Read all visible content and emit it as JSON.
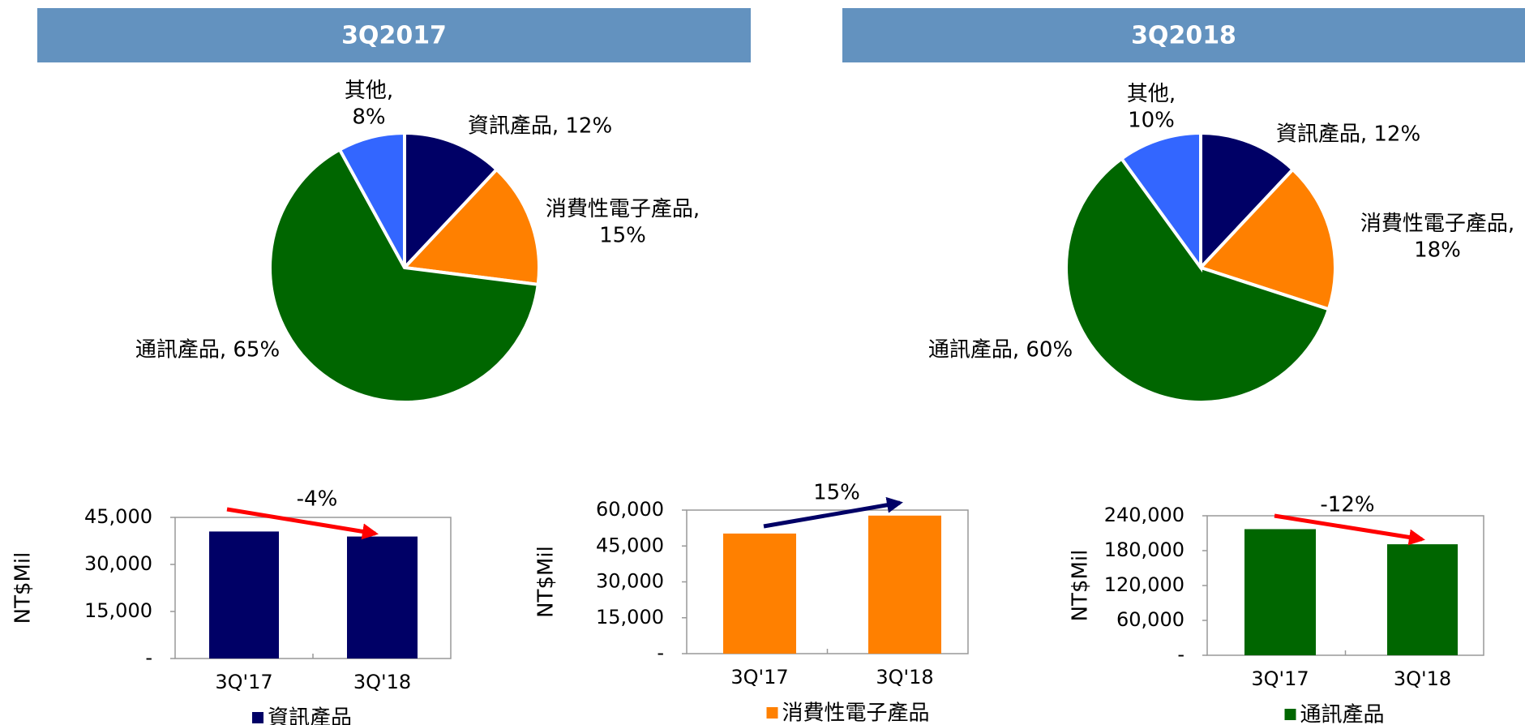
{
  "chart_data": [
    {
      "type": "pie",
      "title": "3Q2017",
      "categories": [
        "資訊產品",
        "消費性電子產品",
        "通訊產品",
        "其他"
      ],
      "values": [
        12,
        15,
        65,
        8
      ],
      "value_labels": [
        "資訊產品, 12%",
        "消費性電子產品,\n15%",
        "通訊產品, 65%",
        "其他,\n8%"
      ],
      "colors": [
        "#000066",
        "#ff8000",
        "#006600",
        "#3366ff"
      ]
    },
    {
      "type": "pie",
      "title": "3Q2018",
      "categories": [
        "資訊產品",
        "消費性電子產品",
        "通訊產品",
        "其他"
      ],
      "values": [
        12,
        18,
        60,
        10
      ],
      "value_labels": [
        "資訊產品, 12%",
        "消費性電子產品,\n18%",
        "通訊產品, 60%",
        "其他,\n10%"
      ],
      "colors": [
        "#000066",
        "#ff8000",
        "#006600",
        "#3366ff"
      ]
    },
    {
      "type": "bar",
      "ylabel": "NT$Mil",
      "categories": [
        "3Q'17",
        "3Q'18"
      ],
      "series": [
        {
          "name": "資訊產品",
          "color": "#000066",
          "values": [
            40500,
            38900
          ]
        }
      ],
      "ylim": [
        0,
        45000
      ],
      "yticks": [
        {
          "value": 0,
          "label": "-"
        },
        {
          "value": 15000,
          "label": "15,000"
        },
        {
          "value": 30000,
          "label": "30,000"
        },
        {
          "value": 45000,
          "label": "45,000"
        }
      ],
      "annotation": "-4%",
      "arrow_color": "#ff0000"
    },
    {
      "type": "bar",
      "ylabel": "NT$Mil",
      "categories": [
        "3Q'17",
        "3Q'18"
      ],
      "series": [
        {
          "name": "消費性電子產品",
          "color": "#ff8000",
          "values": [
            50200,
            57700
          ]
        }
      ],
      "ylim": [
        0,
        60000
      ],
      "yticks": [
        {
          "value": 0,
          "label": "-"
        },
        {
          "value": 15000,
          "label": "15,000"
        },
        {
          "value": 30000,
          "label": "30,000"
        },
        {
          "value": 45000,
          "label": "45,000"
        },
        {
          "value": 60000,
          "label": "60,000"
        }
      ],
      "annotation": "15%",
      "arrow_color": "#000066"
    },
    {
      "type": "bar",
      "ylabel": "NT$Mil",
      "categories": [
        "3Q'17",
        "3Q'18"
      ],
      "series": [
        {
          "name": "通訊產品",
          "color": "#006600",
          "values": [
            217000,
            191000
          ]
        }
      ],
      "ylim": [
        0,
        240000
      ],
      "yticks": [
        {
          "value": 0,
          "label": "-"
        },
        {
          "value": 60000,
          "label": "60,000"
        },
        {
          "value": 120000,
          "label": "120,000"
        },
        {
          "value": 180000,
          "label": "180,000"
        },
        {
          "value": 240000,
          "label": "240,000"
        }
      ],
      "annotation": "-12%",
      "arrow_color": "#ff0000"
    }
  ]
}
